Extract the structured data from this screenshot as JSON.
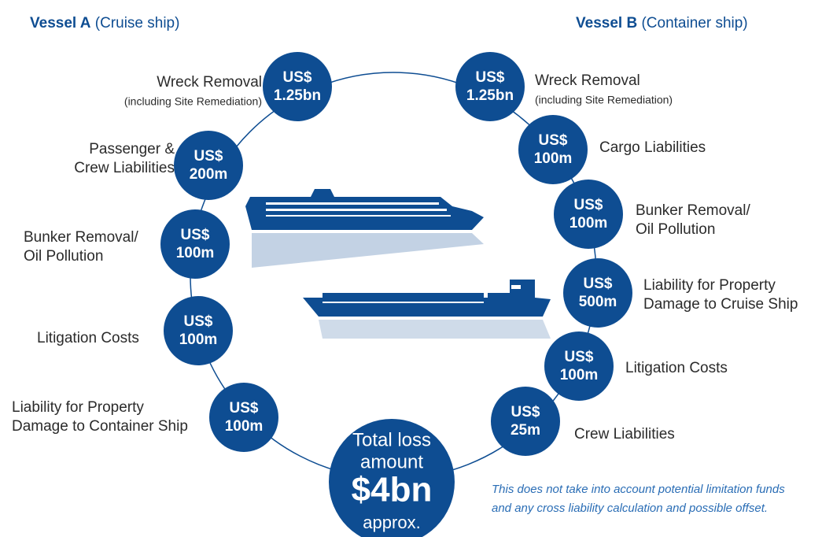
{
  "vessel_a": {
    "name": "Vessel A",
    "type": "(Cruise ship)",
    "items": [
      {
        "amount": [
          "US$",
          "1.25bn"
        ],
        "label": [
          "Wreck Removal"
        ],
        "note": "(including Site Remediation)"
      },
      {
        "amount": [
          "US$",
          "200m"
        ],
        "label": [
          "Passenger &",
          "Crew Liabilities"
        ]
      },
      {
        "amount": [
          "US$",
          "100m"
        ],
        "label": [
          "Bunker Removal/",
          "Oil Pollution"
        ]
      },
      {
        "amount": [
          "US$",
          "100m"
        ],
        "label": [
          "Litigation Costs"
        ]
      },
      {
        "amount": [
          "US$",
          "100m"
        ],
        "label": [
          "Liability for Property",
          "Damage to Container Ship"
        ]
      }
    ]
  },
  "vessel_b": {
    "name": "Vessel B",
    "type": "(Container ship)",
    "items": [
      {
        "amount": [
          "US$",
          "1.25bn"
        ],
        "label": [
          "Wreck Removal"
        ],
        "note": "(including Site Remediation)"
      },
      {
        "amount": [
          "US$",
          "100m"
        ],
        "label": [
          "Cargo Liabilities"
        ]
      },
      {
        "amount": [
          "US$",
          "100m"
        ],
        "label": [
          "Bunker Removal/",
          "Oil Pollution"
        ]
      },
      {
        "amount": [
          "US$",
          "500m"
        ],
        "label": [
          "Liability for Property",
          "Damage to Cruise Ship"
        ]
      },
      {
        "amount": [
          "US$",
          "100m"
        ],
        "label": [
          "Litigation Costs"
        ]
      },
      {
        "amount": [
          "US$",
          "25m"
        ],
        "label": [
          "Crew Liabilities"
        ]
      }
    ]
  },
  "total": {
    "lines": [
      "Total loss",
      "amount"
    ],
    "amount": "$4bn",
    "suffix": "approx."
  },
  "footnote": [
    "This does not take into account potential limitation funds",
    "and any cross liability calculation and possible offset."
  ]
}
